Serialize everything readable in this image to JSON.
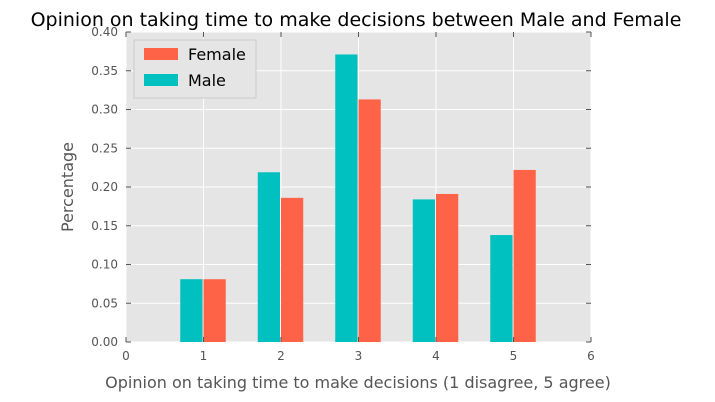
{
  "chart_data": {
    "type": "bar",
    "title": "Opinion on taking time to make decisions between Male and Female",
    "xlabel": "Opinion on taking time to make decisions (1 disagree, 5 agree)",
    "ylabel": "Percentage",
    "xlim": [
      0,
      6
    ],
    "ylim": [
      0,
      0.4
    ],
    "x_ticks": [
      "0",
      "1",
      "2",
      "3",
      "4",
      "5",
      "6"
    ],
    "y_ticks": [
      "0.00",
      "0.05",
      "0.10",
      "0.15",
      "0.20",
      "0.25",
      "0.30",
      "0.35",
      "0.40"
    ],
    "categories": [
      1,
      2,
      3,
      4,
      5
    ],
    "series": [
      {
        "name": "Male",
        "color": "#00c0c0",
        "values": [
          0.081,
          0.219,
          0.371,
          0.184,
          0.138
        ]
      },
      {
        "name": "Female",
        "color": "#ff6347",
        "values": [
          0.081,
          0.186,
          0.313,
          0.191,
          0.222
        ]
      }
    ],
    "legend": {
      "placement": "top-left",
      "order": [
        "Female",
        "Male"
      ]
    },
    "grid": true,
    "background": "#e5e5e5",
    "gridline_color": "#ffffff"
  }
}
